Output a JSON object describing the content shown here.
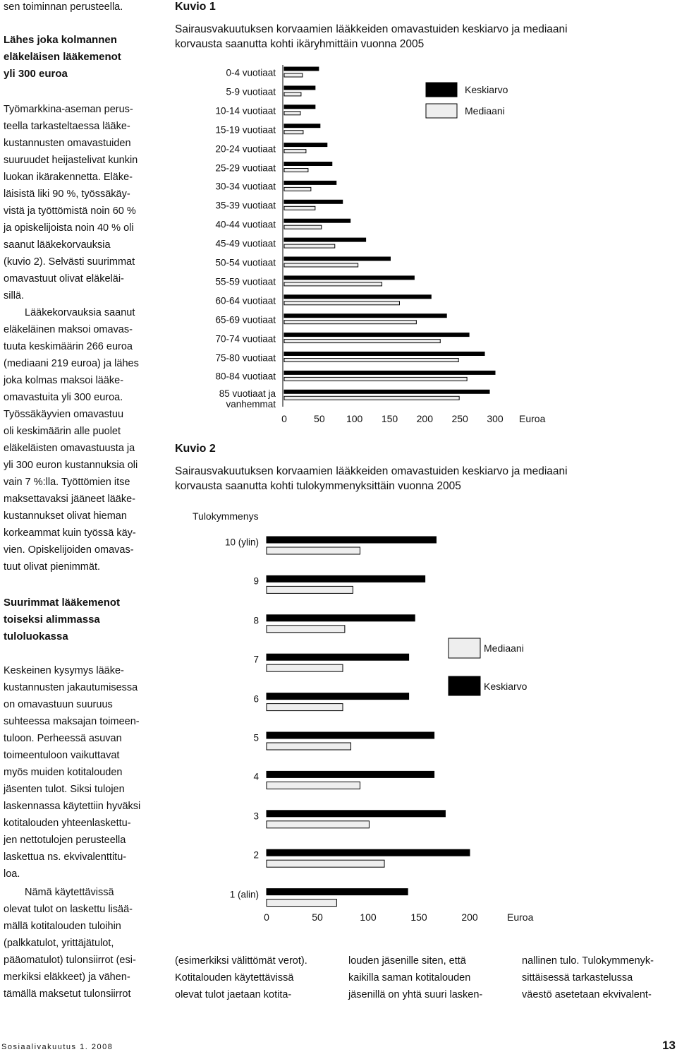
{
  "document": {
    "left_column": [
      {
        "text": [
          "sen toiminnan perusteella."
        ]
      },
      {
        "heading": [
          "Lähes joka kolmannen",
          "eläkeläisen lääkemenot",
          "yli 300 euroa"
        ]
      },
      {
        "text": [
          "Työmarkkina-aseman perus-",
          "teella tarkasteltaessa lääke-",
          "kustannusten omavastuiden",
          "suuruudet heijastelivat kunkin",
          "luokan ikärakennetta. Eläke-",
          "läisistä liki 90 %, työssäkäy-",
          "vistä ja työttömistä noin 60 %",
          "ja opiskelijoista noin 40 % oli",
          "saanut lääkekorvauksia",
          "(kuvio 2). Selvästi suurimmat",
          "omavastuut olivat eläkeläi-",
          "sillä."
        ]
      },
      {
        "text": [
          "Lääkekorvauksia saanut",
          "eläkeläinen maksoi omavas-",
          "tuuta keskimäärin 266 euroa",
          "(mediaani 219 euroa) ja lähes",
          "joka kolmas maksoi lääke-",
          "omavastuita yli 300 euroa.",
          "Työssäkäyvien omavastuu",
          "oli keskimäärin alle puolet",
          "eläkeläisten omavastuusta ja",
          "yli 300 euron kustannuksia oli",
          "vain 7 %:lla. Työttömien itse",
          "maksettavaksi jääneet lääke-",
          "kustannukset olivat hieman",
          "korkeammat kuin työssä käy-",
          "vien. Opiskelijoiden omavas-",
          "tuut olivat pienimmät."
        ]
      },
      {
        "heading": [
          "Suurimmat lääkemenot",
          "toiseksi alimmassa",
          "tuloluokassa"
        ]
      },
      {
        "text": [
          "Keskeinen kysymys lääke-",
          "kustannusten jakautumisessa",
          "on omavastuun suuruus",
          "suhteessa maksajan toimeen-",
          "tuloon. Perheessä asuvan",
          "toimeentuloon vaikuttavat",
          "myös muiden kotitalouden",
          "jäsenten tulot. Siksi tulojen",
          "laskennassa käytettiin hyväksi",
          "kotitalouden yhteenlaskettu-",
          "jen nettotulojen perusteella",
          "laskettua ns. ekvivalenttitu-",
          "loa."
        ]
      },
      {
        "text": [
          "Nämä käytettävissä",
          "olevat tulot on laskettu lisää-",
          "mällä kotitalouden tuloihin",
          "(palkkatulot, yrittäjätulot,",
          "pääomatulot) tulonsiirrot (esi-",
          "merkiksi eläkkeet) ja vähen-",
          "tämällä maksetut tulonsiirrot"
        ]
      }
    ],
    "bottom_columns": [
      [
        "(esimerkiksi välittömät verot).",
        "Kotitalouden käytettävissä",
        "olevat tulot jaetaan kotita-"
      ],
      [
        "louden jäsenille siten, että",
        "kaikilla saman kotitalouden",
        "jäsenillä on yhtä suuri lasken-"
      ],
      [
        "nallinen tulo. Tulokymmenyk-",
        "sittäisessä tarkastelussa",
        "väestö asetetaan ekvivalent-"
      ]
    ],
    "footer": {
      "journal": "Sosiaalivakuutus 1. 2008",
      "page": "13"
    }
  },
  "chart_data": [
    {
      "type": "barh",
      "label": "Kuvio 1",
      "title": [
        "Sairausvakuutuksen korvaamien lääkkeiden omavastuiden keskiarvo ja mediaani",
        "korvausta saanutta kohti ikäryhmittäin vuonna 2005"
      ],
      "categories": [
        "0-4 vuotiaat",
        "5-9 vuotiaat",
        "10-14 vuotiaat",
        "15-19 vuotiaat",
        "20-24 vuotiaat",
        "25-29 vuotiaat",
        "30-34 vuotiaat",
        "35-39 vuotiaat",
        "40-44 vuotiaat",
        "45-49 vuotiaat",
        "50-54 vuotiaat",
        "55-59 vuotiaat",
        "60-64 vuotiaat",
        "65-69 vuotiaat",
        "70-74 vuotiaat",
        "75-80 vuotiaat",
        "80-84 vuotiaat",
        "85 vuotiaat ja\nvanhemmat"
      ],
      "series": [
        {
          "name": "Keskiarvo",
          "color": "#000000",
          "values": [
            49,
            44,
            44,
            51,
            61,
            68,
            74,
            83,
            94,
            116,
            151,
            185,
            209,
            231,
            263,
            285,
            300,
            292
          ]
        },
        {
          "name": "Mediaani",
          "color": "#eeeeee",
          "values": [
            26,
            24,
            23,
            27,
            31,
            34,
            38,
            44,
            53,
            72,
            105,
            139,
            164,
            188,
            222,
            248,
            260,
            249
          ]
        }
      ],
      "xlim": [
        0,
        300
      ],
      "xticks": [
        0,
        50,
        100,
        150,
        200,
        250,
        300
      ],
      "x_label": "Euroa",
      "legend": "top-right"
    },
    {
      "type": "barh",
      "label": "Kuvio 2",
      "title": [
        "Sairausvakuutuksen korvaamien lääkkeiden omavastuiden keskiarvo ja mediaani",
        "korvausta saanutta kohti tulokymmenyksittäin vuonna 2005"
      ],
      "y_label": "Tulokymmenys",
      "categories": [
        "10 (ylin)",
        "9",
        "8",
        "7",
        "6",
        "5",
        "4",
        "3",
        "2",
        "1 (alin)"
      ],
      "series": [
        {
          "name": "Keskiarvo",
          "color": "#000000",
          "values": [
            167,
            156,
            146,
            140,
            140,
            165,
            165,
            176,
            200,
            139
          ]
        },
        {
          "name": "Mediaani",
          "color": "#eeeeee",
          "values": [
            92,
            85,
            77,
            75,
            75,
            83,
            92,
            101,
            116,
            69
          ]
        }
      ],
      "xlim": [
        0,
        200
      ],
      "xticks": [
        0,
        50,
        100,
        150,
        200
      ],
      "x_label": "Euroa",
      "legend": "right"
    }
  ]
}
